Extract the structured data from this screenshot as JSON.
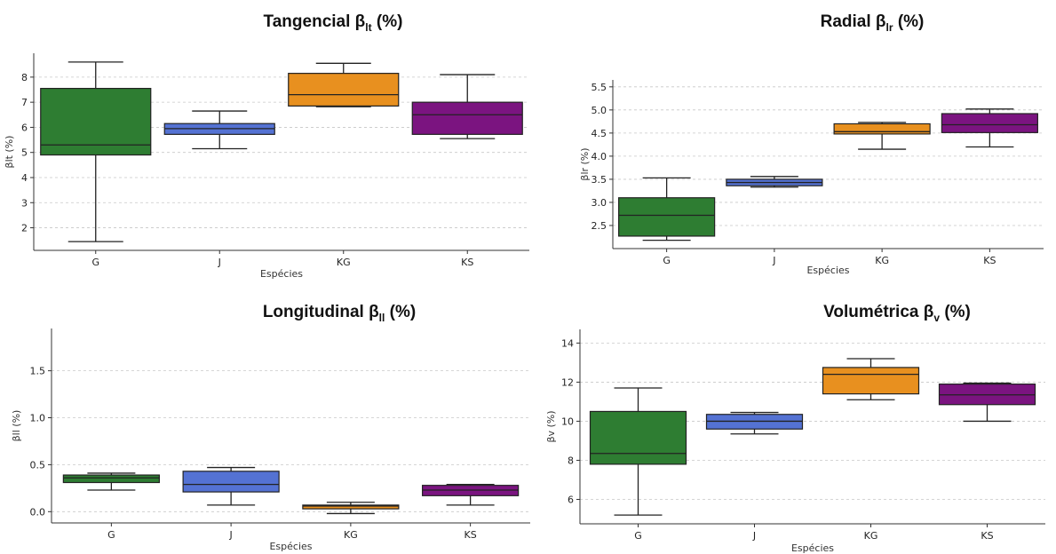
{
  "colors": {
    "G": "#2e7d32",
    "J": "#5472d3",
    "KG": "#e8901f",
    "KS": "#7b1480"
  },
  "chart_data": [
    {
      "type": "box",
      "title_main": "Tangencial β",
      "title_sub": "lt",
      "title_end": " (%)",
      "xlabel": "Espécies",
      "ylabel": "βlt (%)",
      "ylim": [
        1.1,
        8.95
      ],
      "yticks": [
        "2",
        "3",
        "4",
        "5",
        "6",
        "7",
        "8"
      ],
      "categories": [
        "G",
        "J",
        "KG",
        "KS"
      ],
      "boxes": [
        {
          "min": 1.45,
          "q1": 4.9,
          "median": 5.3,
          "q3": 7.55,
          "max": 8.6
        },
        {
          "min": 5.15,
          "q1": 5.72,
          "median": 5.95,
          "q3": 6.15,
          "max": 6.65
        },
        {
          "min": 6.82,
          "q1": 6.85,
          "median": 7.3,
          "q3": 8.15,
          "max": 8.55
        },
        {
          "min": 5.55,
          "q1": 5.72,
          "median": 6.5,
          "q3": 7.0,
          "max": 8.1
        }
      ]
    },
    {
      "type": "box",
      "title_main": "Radial β",
      "title_sub": "lr",
      "title_end": " (%)",
      "xlabel": "Espécies",
      "ylabel": "βlr (%)",
      "ylim": [
        2.0,
        5.65
      ],
      "yticks": [
        "2.5",
        "3.0",
        "3.5",
        "4.0",
        "4.5",
        "5.0",
        "5.5"
      ],
      "categories": [
        "G",
        "J",
        "KG",
        "KS"
      ],
      "boxes": [
        {
          "min": 2.18,
          "q1": 2.27,
          "median": 2.72,
          "q3": 3.1,
          "max": 3.53
        },
        {
          "min": 3.33,
          "q1": 3.36,
          "median": 3.43,
          "q3": 3.5,
          "max": 3.56
        },
        {
          "min": 4.15,
          "q1": 4.48,
          "median": 4.53,
          "q3": 4.7,
          "max": 4.73
        },
        {
          "min": 4.2,
          "q1": 4.51,
          "median": 4.68,
          "q3": 4.92,
          "max": 5.02
        }
      ]
    },
    {
      "type": "box",
      "title_main": "Longitudinal β",
      "title_sub": "ll",
      "title_end": " (%)",
      "xlabel": "Espécies",
      "ylabel": "βll (%)",
      "ylim": [
        -0.12,
        1.95
      ],
      "yticks": [
        "0.0",
        "0.5",
        "1.0",
        "1.5"
      ],
      "categories": [
        "G",
        "J",
        "KG",
        "KS"
      ],
      "boxes": [
        {
          "min": 0.23,
          "q1": 0.31,
          "median": 0.36,
          "q3": 0.39,
          "max": 0.41
        },
        {
          "min": 0.07,
          "q1": 0.21,
          "median": 0.29,
          "q3": 0.43,
          "max": 0.47
        },
        {
          "min": -0.02,
          "q1": 0.03,
          "median": 0.06,
          "q3": 0.07,
          "max": 0.1
        },
        {
          "min": 0.07,
          "q1": 0.17,
          "median": 0.23,
          "q3": 0.28,
          "max": 0.29
        }
      ]
    },
    {
      "type": "box",
      "title_main": "Volumétrica β",
      "title_sub": "v",
      "title_end": " (%)",
      "xlabel": "Espécies",
      "ylabel": "βv (%)",
      "ylim": [
        4.75,
        14.7
      ],
      "yticks": [
        "6",
        "8",
        "10",
        "12",
        "14"
      ],
      "categories": [
        "G",
        "J",
        "KG",
        "KS"
      ],
      "boxes": [
        {
          "min": 5.2,
          "q1": 7.8,
          "median": 8.35,
          "q3": 10.5,
          "max": 11.7
        },
        {
          "min": 9.35,
          "q1": 9.6,
          "median": 10.0,
          "q3": 10.35,
          "max": 10.45
        },
        {
          "min": 11.1,
          "q1": 11.4,
          "median": 12.4,
          "q3": 12.75,
          "max": 13.2
        },
        {
          "min": 10.0,
          "q1": 10.85,
          "median": 11.35,
          "q3": 11.9,
          "max": 11.95
        }
      ]
    }
  ]
}
